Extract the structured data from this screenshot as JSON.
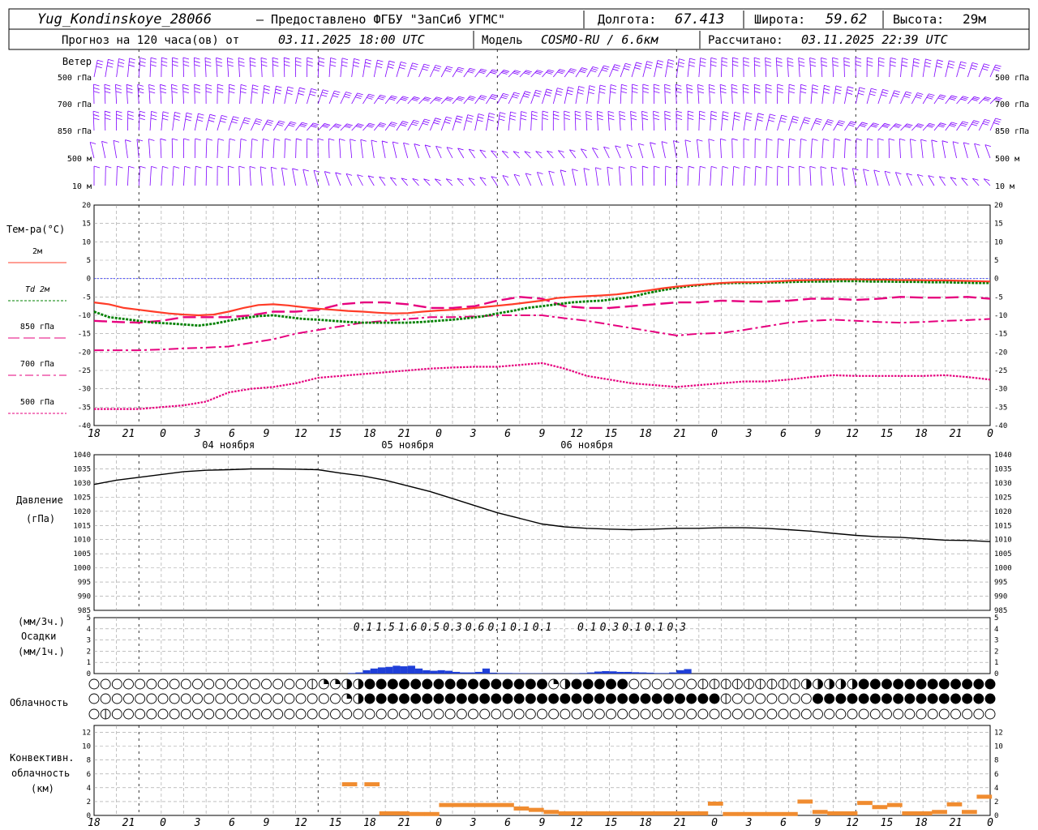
{
  "header": {
    "station": "Yug_Kondinskoye_28066",
    "provider": "– Предоставлено ФГБУ \"ЗапСиб УГМС\"",
    "lon_label": "Долгота:",
    "lon_value": "67.413",
    "lat_label": "Широта:",
    "lat_value": "59.62",
    "alt_label": "Высота:",
    "alt_value": "29м",
    "forecast_prefix": "Прогноз на 120 часа(ов) от",
    "forecast_start": "03.11.2025 18:00 UTC",
    "model_label": "Модель",
    "model_name": "COSMO-RU / 6.6км",
    "calc_label": "Рассчитано:",
    "calc_time": "03.11.2025 22:39 UTC"
  },
  "time_axis": {
    "hour_ticks": [
      "18",
      "21",
      "0",
      "3",
      "6",
      "9",
      "12",
      "15",
      "18",
      "21",
      "0",
      "3",
      "6",
      "9",
      "12",
      "15",
      "18",
      "21",
      "0",
      "3",
      "6",
      "9",
      "12",
      "15",
      "18",
      "21",
      "0"
    ],
    "day_labels": [
      "04 ноября",
      "05 ноября",
      "06 ноября"
    ]
  },
  "wind_panel": {
    "title": "Ветер",
    "levels": [
      "500 гПа",
      "700 гПа",
      "850 гПа",
      "500 м",
      "10  м"
    ],
    "color": "#7f00ff"
  },
  "temp_panel": {
    "title": "Тем-ра(°C)",
    "legend": [
      {
        "label": "2м",
        "color": "#ff3c28",
        "dash": "solid"
      },
      {
        "label": "Td  2м",
        "color": "#008000",
        "dash": "dot"
      },
      {
        "label": "850 гПа",
        "color": "#e6007e",
        "dash": "long-dash"
      },
      {
        "label": "700 гПа",
        "color": "#e6007e",
        "dash": "dash-dot"
      },
      {
        "label": "500 гПа",
        "color": "#e6007e",
        "dash": "dot"
      }
    ],
    "ticks": [
      "20",
      "15",
      "10",
      "5",
      "0",
      "-5",
      "-10",
      "-15",
      "-20",
      "-25",
      "-30",
      "-35",
      "-40"
    ]
  },
  "pressure_panel": {
    "title": "Давление",
    "unit": "(гПа)",
    "ticks": [
      "1040",
      "1035",
      "1030",
      "1025",
      "1020",
      "1015",
      "1010",
      "1005",
      "1000",
      "995",
      "990",
      "985"
    ]
  },
  "precip_panel": {
    "unit_top": "(мм/3ч.)",
    "title": "Осадки",
    "unit_bottom": "(мм/1ч.)",
    "ticks": [
      "5",
      "4",
      "3",
      "2",
      "1",
      "0"
    ],
    "labels": [
      {
        "h": 36,
        "text": "0.1"
      },
      {
        "h": 39,
        "text": "1.5"
      },
      {
        "h": 42,
        "text": "1.6"
      },
      {
        "h": 45,
        "text": "0.5"
      },
      {
        "h": 48,
        "text": "0.3"
      },
      {
        "h": 51,
        "text": "0.6"
      },
      {
        "h": 54,
        "text": "0.1"
      },
      {
        "h": 57,
        "text": "0.1"
      },
      {
        "h": 60,
        "text": "0.1"
      },
      {
        "h": 66,
        "text": "0.1"
      },
      {
        "h": 69,
        "text": "0.3"
      },
      {
        "h": 72,
        "text": "0.1"
      },
      {
        "h": 75,
        "text": "0.1"
      },
      {
        "h": 78,
        "text": "0.3"
      }
    ]
  },
  "cloud_panel": {
    "title": "Облачность"
  },
  "conv_panel": {
    "title1": "Конвективн.",
    "title2": "облачность",
    "unit": "(км)",
    "ticks": [
      "12",
      "10",
      "8",
      "6",
      "4",
      "2",
      "0"
    ]
  },
  "chart_data": {
    "type": "line",
    "x_unit": "hours since 03.11.2025 18:00 UTC",
    "series": [
      {
        "name": "2м",
        "x": [
          0,
          2,
          4,
          6,
          8,
          10,
          12,
          14,
          16,
          18,
          20,
          22,
          24,
          26,
          28,
          30,
          32,
          34,
          36,
          38,
          40,
          42,
          44,
          46,
          48,
          50,
          52,
          54,
          56,
          58,
          60,
          62,
          64,
          66,
          68,
          70,
          72,
          74,
          76,
          78,
          80,
          82,
          84,
          86,
          88,
          90,
          92,
          94,
          96,
          98,
          100,
          102,
          104,
          106,
          108,
          110,
          112,
          114,
          116,
          118,
          120
        ],
        "values": [
          -6.5,
          -7,
          -8,
          -8.5,
          -9,
          -9.5,
          -9.8,
          -10,
          -9.8,
          -9,
          -8,
          -7.2,
          -7,
          -7.3,
          -7.8,
          -8.2,
          -8.5,
          -8.8,
          -9,
          -9.3,
          -9.5,
          -9.4,
          -9,
          -8.7,
          -8.5,
          -8.2,
          -7.8,
          -7.4,
          -7,
          -6.5,
          -6,
          -5.3,
          -5,
          -4.8,
          -4.6,
          -4.3,
          -3.8,
          -3.3,
          -2.7,
          -2.2,
          -1.8,
          -1.5,
          -1.2,
          -1,
          -1,
          -0.9,
          -0.7,
          -0.5,
          -0.4,
          -0.3,
          -0.2,
          -0.2,
          -0.3,
          -0.3,
          -0.4,
          -0.4,
          -0.5,
          -0.5,
          -0.6,
          -0.7,
          -0.8
        ]
      },
      {
        "name": "Td  2м",
        "x": [
          0,
          2,
          4,
          6,
          8,
          10,
          12,
          14,
          16,
          18,
          20,
          22,
          24,
          26,
          28,
          30,
          32,
          34,
          36,
          38,
          40,
          42,
          44,
          46,
          48,
          50,
          52,
          54,
          56,
          58,
          60,
          62,
          64,
          66,
          68,
          70,
          72,
          74,
          76,
          78,
          80,
          82,
          84,
          86,
          88,
          90,
          92,
          94,
          96,
          98,
          100,
          102,
          104,
          106,
          108,
          110,
          112,
          114,
          116,
          118,
          120
        ],
        "values": [
          -9,
          -10.5,
          -11,
          -11.5,
          -12,
          -12.2,
          -12.5,
          -12.8,
          -12.3,
          -11.5,
          -10.8,
          -10.2,
          -10,
          -10.5,
          -11,
          -11.2,
          -11.5,
          -11.8,
          -12,
          -12,
          -12,
          -12,
          -11.8,
          -11.5,
          -11.2,
          -10.8,
          -10.3,
          -9.5,
          -8.8,
          -8,
          -7.5,
          -7,
          -6.5,
          -6.2,
          -6,
          -5.5,
          -5,
          -4,
          -3.2,
          -2.5,
          -2,
          -1.6,
          -1.3,
          -1.2,
          -1.2,
          -1.1,
          -1,
          -0.9,
          -0.8,
          -0.8,
          -0.7,
          -0.7,
          -0.8,
          -0.8,
          -0.9,
          -0.9,
          -1,
          -1,
          -1.1,
          -1.2,
          -1.2
        ]
      },
      {
        "name": "850 гПа",
        "x": [
          0,
          3,
          6,
          9,
          12,
          15,
          18,
          21,
          24,
          27,
          30,
          33,
          36,
          39,
          42,
          45,
          48,
          51,
          54,
          57,
          60,
          63,
          66,
          69,
          72,
          75,
          78,
          81,
          84,
          87,
          90,
          93,
          96,
          99,
          102,
          105,
          108,
          111,
          114,
          117,
          120
        ],
        "values": [
          -11.5,
          -11.8,
          -12,
          -11.5,
          -10.5,
          -10.5,
          -10.5,
          -10,
          -9,
          -9,
          -8.5,
          -7,
          -6.5,
          -6.5,
          -7,
          -8,
          -8,
          -7.5,
          -6,
          -5,
          -5.5,
          -7.5,
          -8,
          -8,
          -7.5,
          -7,
          -6.5,
          -6.5,
          -6,
          -6.2,
          -6.3,
          -6,
          -5.5,
          -5.5,
          -5.8,
          -5.5,
          -5,
          -5.2,
          -5.2,
          -5,
          -5.5
        ]
      },
      {
        "name": "700 гПа",
        "x": [
          0,
          3,
          6,
          9,
          12,
          15,
          18,
          21,
          24,
          27,
          30,
          33,
          36,
          39,
          42,
          45,
          48,
          51,
          54,
          57,
          60,
          63,
          66,
          69,
          72,
          75,
          78,
          81,
          84,
          87,
          90,
          93,
          96,
          99,
          102,
          105,
          108,
          111,
          114,
          117,
          120
        ],
        "values": [
          -19.5,
          -19.5,
          -19.5,
          -19.3,
          -19,
          -18.8,
          -18.5,
          -17.5,
          -16.5,
          -15,
          -14,
          -13,
          -12,
          -11.5,
          -11,
          -10.5,
          -10.5,
          -10.3,
          -10,
          -10,
          -10,
          -10.8,
          -11.5,
          -12.5,
          -13.5,
          -14.5,
          -15.5,
          -15,
          -14.8,
          -14,
          -13,
          -12,
          -11.5,
          -11.2,
          -11.5,
          -11.8,
          -12,
          -11.8,
          -11.5,
          -11.3,
          -11
        ]
      },
      {
        "name": "500 гПа",
        "x": [
          0,
          3,
          6,
          9,
          12,
          15,
          18,
          21,
          24,
          27,
          30,
          33,
          36,
          39,
          42,
          45,
          48,
          51,
          54,
          57,
          60,
          63,
          66,
          69,
          72,
          75,
          78,
          81,
          84,
          87,
          90,
          93,
          96,
          99,
          102,
          105,
          108,
          111,
          114,
          117,
          120
        ],
        "values": [
          -35.5,
          -35.5,
          -35.5,
          -35,
          -34.5,
          -33.5,
          -31,
          -30,
          -29.5,
          -28.5,
          -27,
          -26.5,
          -26,
          -25.5,
          -25,
          -24.5,
          -24.2,
          -24,
          -24,
          -23.5,
          -23,
          -24.5,
          -26.5,
          -27.5,
          -28.5,
          -29,
          -29.5,
          -29,
          -28.5,
          -28,
          -28,
          -27.5,
          -26.8,
          -26.3,
          -26.5,
          -26.5,
          -26.5,
          -26.5,
          -26.3,
          -26.8,
          -27.5
        ]
      },
      {
        "name": "Давление",
        "x": [
          0,
          3,
          6,
          9,
          12,
          15,
          18,
          21,
          24,
          27,
          30,
          33,
          36,
          39,
          42,
          45,
          48,
          51,
          54,
          57,
          60,
          63,
          66,
          69,
          72,
          75,
          78,
          81,
          84,
          87,
          90,
          93,
          96,
          99,
          102,
          105,
          108,
          111,
          114,
          117,
          120
        ],
        "values": [
          1029.5,
          1031,
          1032,
          1033,
          1034,
          1034.5,
          1034.7,
          1035,
          1035,
          1034.9,
          1034.7,
          1033.5,
          1032.5,
          1031,
          1029,
          1027,
          1024.5,
          1022,
          1019.5,
          1017.5,
          1015.5,
          1014.5,
          1014,
          1013.7,
          1013.5,
          1013.7,
          1014,
          1014,
          1014.2,
          1014.2,
          1014,
          1013.5,
          1013,
          1012.2,
          1011.5,
          1011,
          1010.8,
          1010.3,
          1009.8,
          1009.7,
          1009.3
        ]
      },
      {
        "name": "Осадки",
        "x": [
          35,
          36,
          37,
          38,
          39,
          40,
          41,
          42,
          43,
          44,
          45,
          46,
          47,
          48,
          49,
          50,
          51,
          52,
          53,
          54,
          55,
          56,
          57,
          58,
          59,
          60,
          61,
          62,
          63,
          64,
          65,
          66,
          67,
          68,
          69,
          70,
          71,
          72,
          73,
          74,
          75,
          76,
          77,
          78,
          79,
          80
        ],
        "values": [
          0.05,
          0.1,
          0.3,
          0.45,
          0.55,
          0.6,
          0.7,
          0.65,
          0.7,
          0.45,
          0.3,
          0.25,
          0.3,
          0.25,
          0.15,
          0.1,
          0.1,
          0.15,
          0.45,
          0.08,
          0.05,
          0.05,
          0.04,
          0.04,
          0.03,
          0.03,
          0.02,
          0.02,
          0.02,
          0.02,
          0.03,
          0.05,
          0.1,
          0.18,
          0.22,
          0.2,
          0.15,
          0.15,
          0.12,
          0.1,
          0.08,
          0.05,
          0.05,
          0.1,
          0.3,
          0.4
        ]
      },
      {
        "name": "Конвективн. облачность",
        "x": [
          34,
          37,
          39,
          41,
          43,
          45,
          47,
          49,
          51,
          53,
          55,
          57,
          59,
          61,
          63,
          65,
          67,
          69,
          71,
          73,
          75,
          77,
          79,
          81,
          83,
          85,
          87,
          89,
          91,
          93,
          95,
          97,
          99,
          101,
          103,
          105,
          107,
          109,
          111,
          113,
          115,
          117,
          119
        ],
        "values": [
          4.5,
          4.5,
          0.3,
          0.3,
          0.2,
          0.2,
          1.5,
          1.5,
          1.5,
          1.5,
          1.5,
          1,
          0.8,
          0.5,
          0.3,
          0.3,
          0.3,
          0.3,
          0.3,
          0.3,
          0.3,
          0.3,
          0.3,
          0.3,
          1.7,
          0.2,
          0.2,
          0.2,
          0.2,
          0.2,
          2,
          0.5,
          0.3,
          0.3,
          1.8,
          1.2,
          1.5,
          0.3,
          0.3,
          0.5,
          1.6,
          0.5,
          2.7
        ]
      }
    ],
    "cloud_rows": {
      "low": "000000000000000000000000000012233344444444444444444444444423444444440000000011111111111112333333344444444444444444",
      "mid": "000000000000000000000000000000002344444444444444444444444444444444444444444444421000000000044444444444444444444444",
      "high": "010000000000000000000000000000000000000000000000000000000000000000000000000000000000000000000000000000000000000000"
    },
    "xlim": [
      0,
      120
    ],
    "temp_ylim": [
      -40,
      20
    ],
    "pressure_ylim": [
      985,
      1040
    ],
    "precip_ylim": [
      0,
      5
    ],
    "conv_ylim": [
      0,
      13
    ],
    "grid": true
  }
}
